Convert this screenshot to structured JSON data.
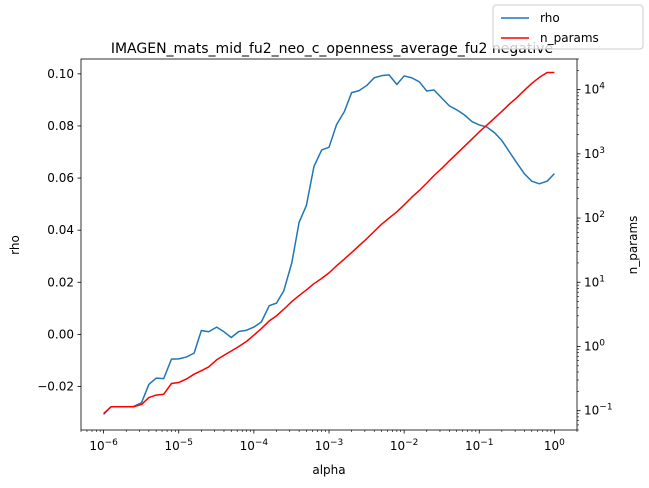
{
  "chart_data": {
    "type": "line",
    "title": "IMAGEN_mats_mid_fu2_neo_c_openness_average_fu2 negative",
    "xlabel": "alpha",
    "ylabel": "rho",
    "y2label": "n_params",
    "xscale": "log",
    "y2scale": "log",
    "xlim": [
      5e-07,
      2
    ],
    "ylim": [
      -0.0367,
      0.1057
    ],
    "y2lim": [
      0.05,
      30000
    ],
    "x_ticks": [
      {
        "value": 1e-06,
        "base": "10",
        "exp": "−6"
      },
      {
        "value": 1e-05,
        "base": "10",
        "exp": "−5"
      },
      {
        "value": 0.0001,
        "base": "10",
        "exp": "−4"
      },
      {
        "value": 0.001,
        "base": "10",
        "exp": "−3"
      },
      {
        "value": 0.01,
        "base": "10",
        "exp": "−2"
      },
      {
        "value": 0.1,
        "base": "10",
        "exp": "−1"
      },
      {
        "value": 1,
        "base": "10",
        "exp": "0"
      }
    ],
    "y_ticks": [
      {
        "value": -0.02,
        "label": "−0.02"
      },
      {
        "value": 0.0,
        "label": "0.00"
      },
      {
        "value": 0.02,
        "label": "0.02"
      },
      {
        "value": 0.04,
        "label": "0.04"
      },
      {
        "value": 0.06,
        "label": "0.06"
      },
      {
        "value": 0.08,
        "label": "0.08"
      },
      {
        "value": 0.1,
        "label": "0.10"
      }
    ],
    "y2_ticks": [
      {
        "value": 0.1,
        "base": "10",
        "exp": "−1"
      },
      {
        "value": 1,
        "base": "10",
        "exp": "0"
      },
      {
        "value": 10,
        "base": "10",
        "exp": "1"
      },
      {
        "value": 100,
        "base": "10",
        "exp": "2"
      },
      {
        "value": 1000,
        "base": "10",
        "exp": "3"
      },
      {
        "value": 10000,
        "base": "10",
        "exp": "4"
      }
    ],
    "legend_position": "top-right",
    "series": [
      {
        "name": "rho",
        "axis": "left",
        "color": "#1f77b4",
        "points": [
          [
            1e-06,
            -0.0307
          ],
          [
            1.25e-06,
            -0.0278
          ],
          [
            1.6e-06,
            -0.0278
          ],
          [
            2e-06,
            -0.0278
          ],
          [
            2.5e-06,
            -0.0277
          ],
          [
            3.2e-06,
            -0.0262
          ],
          [
            4e-06,
            -0.0192
          ],
          [
            5e-06,
            -0.0168
          ],
          [
            6.3e-06,
            -0.017
          ],
          [
            8e-06,
            -0.0095
          ],
          [
            1e-05,
            -0.0094
          ],
          [
            1.26e-05,
            -0.0087
          ],
          [
            1.6e-05,
            -0.0072
          ],
          [
            2e-05,
            0.0015
          ],
          [
            2.5e-05,
            0.001
          ],
          [
            3.2e-05,
            0.0028
          ],
          [
            4e-05,
            0.001
          ],
          [
            5e-05,
            -0.0012
          ],
          [
            6.3e-05,
            0.0011
          ],
          [
            8e-05,
            0.0016
          ],
          [
            0.0001,
            0.0028
          ],
          [
            0.000126,
            0.0048
          ],
          [
            0.00016,
            0.011
          ],
          [
            0.0002,
            0.012
          ],
          [
            0.00025,
            0.0167
          ],
          [
            0.00032,
            0.0275
          ],
          [
            0.0004,
            0.043
          ],
          [
            0.0005,
            0.0495
          ],
          [
            0.00063,
            0.0644
          ],
          [
            0.0008,
            0.0708
          ],
          [
            0.001,
            0.0718
          ],
          [
            0.00126,
            0.0805
          ],
          [
            0.0016,
            0.0855
          ],
          [
            0.002,
            0.0928
          ],
          [
            0.0025,
            0.0935
          ],
          [
            0.0032,
            0.0956
          ],
          [
            0.004,
            0.0985
          ],
          [
            0.005,
            0.0993
          ],
          [
            0.0063,
            0.0996
          ],
          [
            0.008,
            0.0959
          ],
          [
            0.01,
            0.0992
          ],
          [
            0.0126,
            0.0985
          ],
          [
            0.016,
            0.0969
          ],
          [
            0.02,
            0.0934
          ],
          [
            0.025,
            0.0938
          ],
          [
            0.032,
            0.0906
          ],
          [
            0.04,
            0.0877
          ],
          [
            0.05,
            0.0862
          ],
          [
            0.063,
            0.0843
          ],
          [
            0.08,
            0.0817
          ],
          [
            0.1,
            0.0804
          ],
          [
            0.126,
            0.0796
          ],
          [
            0.16,
            0.0774
          ],
          [
            0.2,
            0.0744
          ],
          [
            0.25,
            0.0702
          ],
          [
            0.32,
            0.0656
          ],
          [
            0.4,
            0.0616
          ],
          [
            0.5,
            0.0588
          ],
          [
            0.63,
            0.0578
          ],
          [
            0.8,
            0.0588
          ],
          [
            1,
            0.0617
          ]
        ]
      },
      {
        "name": "n_params",
        "axis": "right",
        "color": "#ff0000",
        "points": [
          [
            1e-06,
            0.09
          ],
          [
            1.26e-06,
            0.115
          ],
          [
            1.6e-06,
            0.115
          ],
          [
            2e-06,
            0.115
          ],
          [
            2.5e-06,
            0.115
          ],
          [
            3.2e-06,
            0.125
          ],
          [
            4e-06,
            0.16
          ],
          [
            5e-06,
            0.175
          ],
          [
            6.3e-06,
            0.18
          ],
          [
            8e-06,
            0.265
          ],
          [
            1e-05,
            0.275
          ],
          [
            1.26e-05,
            0.31
          ],
          [
            1.6e-05,
            0.37
          ],
          [
            2e-05,
            0.42
          ],
          [
            2.5e-05,
            0.48
          ],
          [
            3.2e-05,
            0.62
          ],
          [
            4e-05,
            0.73
          ],
          [
            5e-05,
            0.85
          ],
          [
            6.3e-05,
            1.0
          ],
          [
            8e-05,
            1.2
          ],
          [
            0.0001,
            1.5
          ],
          [
            0.000126,
            1.9
          ],
          [
            0.00016,
            2.5
          ],
          [
            0.0002,
            3.0
          ],
          [
            0.00025,
            3.8
          ],
          [
            0.00032,
            5.0
          ],
          [
            0.0004,
            6.2
          ],
          [
            0.0005,
            7.6
          ],
          [
            0.00063,
            9.5
          ],
          [
            0.0008,
            11.5
          ],
          [
            0.001,
            14
          ],
          [
            0.00126,
            18
          ],
          [
            0.0016,
            23
          ],
          [
            0.002,
            29
          ],
          [
            0.0025,
            37
          ],
          [
            0.0032,
            48
          ],
          [
            0.004,
            62
          ],
          [
            0.005,
            80
          ],
          [
            0.0063,
            100
          ],
          [
            0.008,
            125
          ],
          [
            0.01,
            160
          ],
          [
            0.0126,
            210
          ],
          [
            0.016,
            270
          ],
          [
            0.02,
            350
          ],
          [
            0.025,
            460
          ],
          [
            0.032,
            600
          ],
          [
            0.04,
            780
          ],
          [
            0.05,
            1000
          ],
          [
            0.063,
            1300
          ],
          [
            0.08,
            1700
          ],
          [
            0.1,
            2200
          ],
          [
            0.126,
            2800
          ],
          [
            0.16,
            3600
          ],
          [
            0.2,
            4600
          ],
          [
            0.25,
            5900
          ],
          [
            0.32,
            7600
          ],
          [
            0.4,
            9800
          ],
          [
            0.5,
            12500
          ],
          [
            0.63,
            15500
          ],
          [
            0.8,
            18500
          ],
          [
            1,
            18500
          ]
        ]
      }
    ]
  }
}
